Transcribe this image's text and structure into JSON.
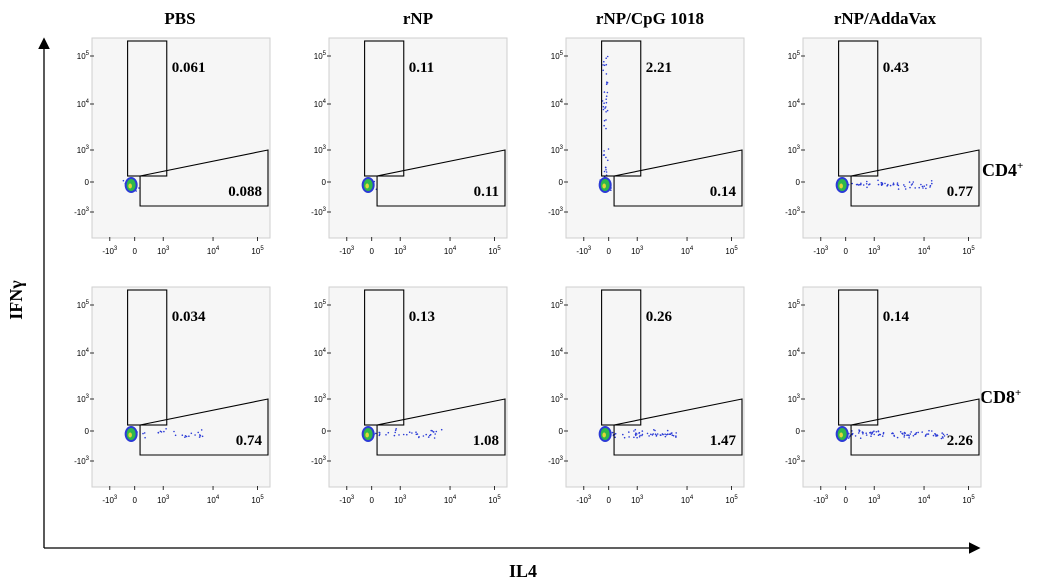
{
  "chart_data": {
    "type": "scatter",
    "xlabel": "IL4",
    "ylabel": "IFNγ",
    "columns": [
      "PBS",
      "rNP",
      "rNP/CpG 1018",
      "rNP/AddaVax"
    ],
    "rows": [
      {
        "label": "CD4",
        "sup": "+"
      },
      {
        "label": "CD8",
        "sup": "+"
      }
    ],
    "x_tick_labels": [
      "-10",
      "0",
      "10",
      "10",
      "10"
    ],
    "x_tick_exponents": [
      "3",
      "",
      "3",
      "4",
      "5"
    ],
    "y_tick_labels": [
      "10",
      "10",
      "10",
      "0",
      "-10"
    ],
    "y_tick_exponents": [
      "5",
      "4",
      "3",
      "",
      "3"
    ],
    "panels": [
      {
        "row": "CD4",
        "column": "PBS",
        "ifng_gate_pct": "0.061",
        "il4_gate_pct": "0.088"
      },
      {
        "row": "CD4",
        "column": "rNP",
        "ifng_gate_pct": "0.11",
        "il4_gate_pct": "0.11"
      },
      {
        "row": "CD4",
        "column": "rNP/CpG 1018",
        "ifng_gate_pct": "2.21",
        "il4_gate_pct": "0.14"
      },
      {
        "row": "CD4",
        "column": "rNP/AddaVax",
        "ifng_gate_pct": "0.43",
        "il4_gate_pct": "0.77"
      },
      {
        "row": "CD8",
        "column": "PBS",
        "ifng_gate_pct": "0.034",
        "il4_gate_pct": "0.74"
      },
      {
        "row": "CD8",
        "column": "rNP",
        "ifng_gate_pct": "0.13",
        "il4_gate_pct": "1.08"
      },
      {
        "row": "CD8",
        "column": "rNP/CpG 1018",
        "ifng_gate_pct": "0.26",
        "il4_gate_pct": "1.47"
      },
      {
        "row": "CD8",
        "column": "rNP/AddaVax",
        "ifng_gate_pct": "0.14",
        "il4_gate_pct": "2.26"
      }
    ],
    "colors": {
      "gate": "#000000",
      "events_sparse": "#2b3bd6",
      "events_dense": "#2fb84a",
      "events_core": "#e0d53a"
    }
  }
}
